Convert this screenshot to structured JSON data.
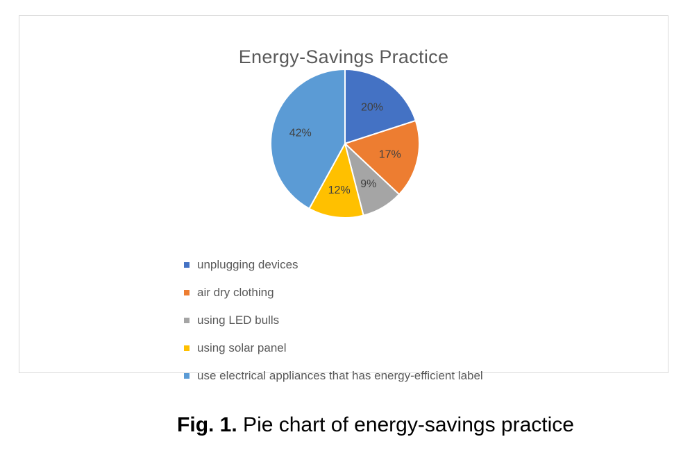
{
  "chart_data": {
    "type": "pie",
    "title": "Energy-Savings Practice",
    "categories": [
      "unplugging devices",
      "air dry clothing",
      "using LED bulls",
      "using solar panel",
      "use electrical appliances that has energy-efficient label"
    ],
    "values": [
      20,
      17,
      9,
      12,
      42
    ],
    "data_labels": [
      "20%",
      "17%",
      "9%",
      "12%",
      "42%"
    ],
    "colors": [
      "#4472C4",
      "#ED7D31",
      "#A5A5A5",
      "#FFC000",
      "#5B9BD5"
    ],
    "legend_position": "bottom-left"
  },
  "caption": {
    "prefix": "Fig. 1.",
    "text": " Pie chart of energy-savings practice"
  }
}
